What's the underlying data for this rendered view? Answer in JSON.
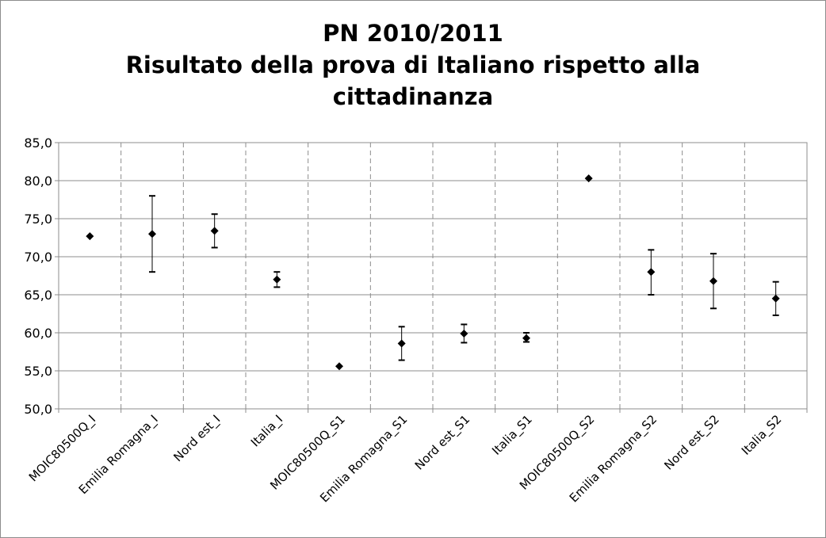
{
  "chart_data": {
    "type": "scatter",
    "title_lines": [
      "PN 2010/2011",
      "Risultato della prova di Italiano rispetto alla",
      "cittadinanza"
    ],
    "categories": [
      "MOIC80500Q_I",
      "Emilia Romagna_I",
      "Nord est_I",
      "Italia_I",
      "MOIC80500Q_S1",
      "Emilia Romagna_S1",
      "Nord est_S1",
      "Italia_S1",
      "MOIC80500Q_S2",
      "Emilia Romagna_S2",
      "Nord est_S2",
      "Italia_S2"
    ],
    "values": [
      72.7,
      73.0,
      73.4,
      67.0,
      55.6,
      58.6,
      59.9,
      59.3,
      80.3,
      68.0,
      66.8,
      64.5
    ],
    "error_low": [
      null,
      68.0,
      71.2,
      66.0,
      null,
      56.4,
      58.7,
      58.8,
      null,
      65.0,
      63.2,
      62.3
    ],
    "error_high": [
      null,
      78.0,
      75.6,
      68.0,
      null,
      60.8,
      61.1,
      60.0,
      null,
      70.9,
      70.4,
      66.7
    ],
    "y_ticks": [
      "50,0",
      "55,0",
      "60,0",
      "65,0",
      "70,0",
      "75,0",
      "80,0",
      "85,0"
    ],
    "ylim": [
      50,
      85
    ],
    "grid": "horizontal solid, vertical dashed",
    "marker": "diamond",
    "colors": {
      "marker": "#000000",
      "grid": "#8c8c8c",
      "frame": "#8c8c8c"
    }
  }
}
